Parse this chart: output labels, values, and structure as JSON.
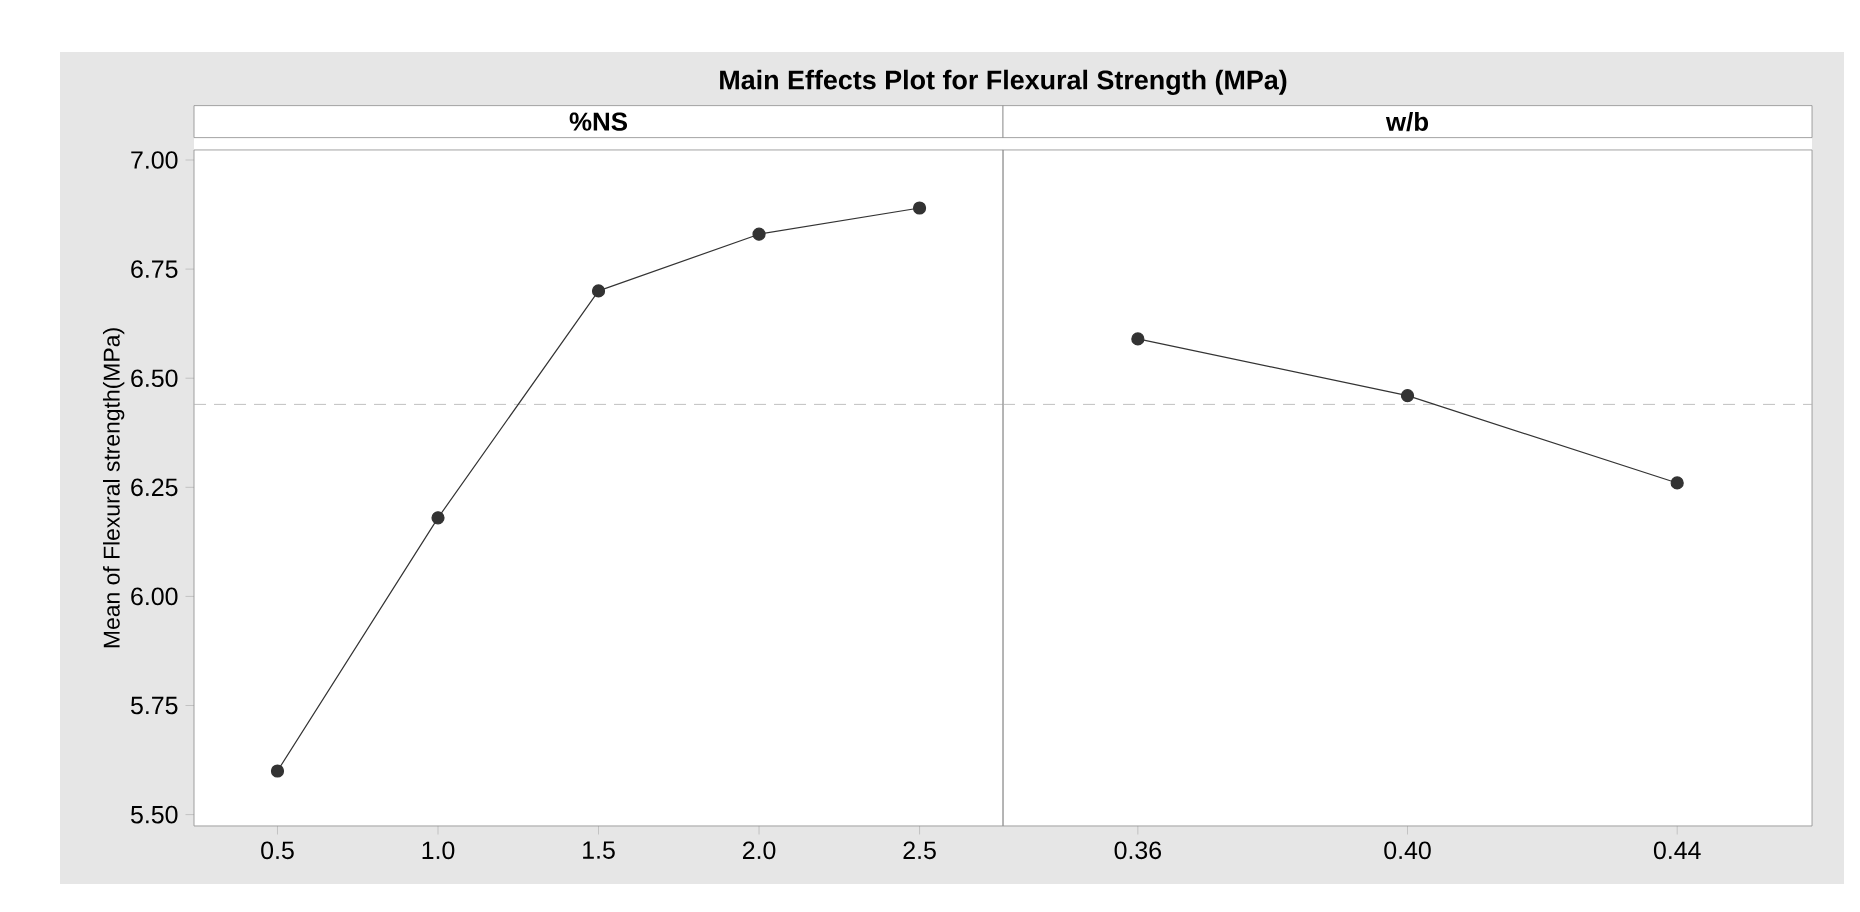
{
  "chart_data": [
    {
      "type": "line",
      "title": "Main Effects Plot for Flexural Strength (MPa)",
      "subtitle": "%NS",
      "ylabel": "Mean of Flexural strength(MPa)",
      "x": [
        0.5,
        1.0,
        1.5,
        2.0,
        2.5
      ],
      "values": [
        5.6,
        6.18,
        6.7,
        6.83,
        6.89
      ],
      "color": "#333333",
      "marker": "circle",
      "line_style": "solid",
      "xlim": [
        0.24,
        2.76
      ],
      "ylim": [
        5.474,
        7.023
      ],
      "xticks": [
        {
          "value": 0.5,
          "label": "0.5"
        },
        {
          "value": 1.0,
          "label": "1.0"
        },
        {
          "value": 1.5,
          "label": "1.5"
        },
        {
          "value": 2.0,
          "label": "2.0"
        },
        {
          "value": 2.5,
          "label": "2.5"
        }
      ],
      "yticks": [
        {
          "value": 5.5,
          "label": "5.50"
        },
        {
          "value": 5.75,
          "label": "5.75"
        },
        {
          "value": 6.0,
          "label": "6.00"
        },
        {
          "value": 6.25,
          "label": "6.25"
        },
        {
          "value": 6.5,
          "label": "6.50"
        },
        {
          "value": 6.75,
          "label": "6.75"
        },
        {
          "value": 7.0,
          "label": "7.00"
        }
      ],
      "ref_lines": [
        {
          "axis": "y",
          "value": 6.44,
          "color": "#b0b0b0",
          "line_style": "dashed"
        }
      ]
    },
    {
      "type": "line",
      "subtitle": "w/b",
      "x": [
        0.36,
        0.4,
        0.44
      ],
      "values": [
        6.59,
        6.46,
        6.26
      ],
      "color": "#333333",
      "marker": "circle",
      "line_style": "solid",
      "xlim": [
        0.34,
        0.46
      ],
      "ylim": [
        5.474,
        7.023
      ],
      "tick_labels": "x",
      "xticks": [
        {
          "value": 0.36,
          "label": "0.36"
        },
        {
          "value": 0.4,
          "label": "0.40"
        },
        {
          "value": 0.44,
          "label": "0.44"
        }
      ],
      "ref_lines": [
        {
          "axis": "y",
          "value": 6.44,
          "color": "#b0b0b0",
          "line_style": "dashed"
        }
      ]
    }
  ]
}
